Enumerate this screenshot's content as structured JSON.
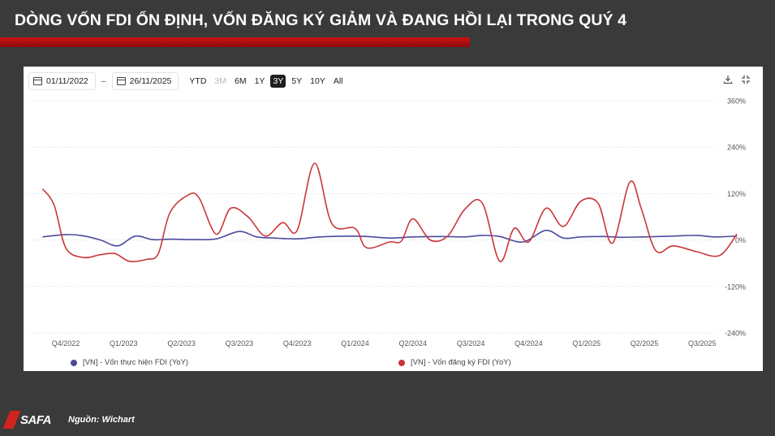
{
  "header": {
    "title": "DÒNG VỐN FDI ỔN ĐỊNH, VỐN ĐĂNG KÝ GIẢM VÀ ĐANG HỒI LẠI TRONG QUÝ 4"
  },
  "toolbar": {
    "start_date": "01/11/2022",
    "separator": "–",
    "end_date": "26/11/2025",
    "ranges": [
      {
        "label": "YTD",
        "state": "normal"
      },
      {
        "label": "3M",
        "state": "disabled"
      },
      {
        "label": "6M",
        "state": "normal"
      },
      {
        "label": "1Y",
        "state": "normal"
      },
      {
        "label": "3Y",
        "state": "active"
      },
      {
        "label": "5Y",
        "state": "normal"
      },
      {
        "label": "10Y",
        "state": "normal"
      },
      {
        "label": "All",
        "state": "normal"
      }
    ],
    "download_icon": "download-icon",
    "fullscreen_icon": "fullscreen-icon"
  },
  "chart_data": {
    "type": "line",
    "x_tick_labels": [
      "Q4/2022",
      "Q1/2023",
      "Q2/2023",
      "Q3/2023",
      "Q4/2023",
      "Q1/2024",
      "Q2/2024",
      "Q3/2024",
      "Q4/2024",
      "Q1/2025",
      "Q2/2025",
      "Q3/2025"
    ],
    "y_ticks": [
      360,
      240,
      120,
      0,
      -120,
      -240
    ],
    "y_tick_labels": [
      "360%",
      "240%",
      "120%",
      "0%",
      "-120%",
      "-240%"
    ],
    "ylim": [
      -240,
      360
    ],
    "xlim": [
      0,
      12
    ],
    "grid": true,
    "legend_position": "bottom",
    "series": [
      {
        "name": "[VN] - Vốn thực hiện FDI (YoY)",
        "color": "#4a4a9e",
        "points": [
          [
            -0.4,
            8
          ],
          [
            0.0,
            14
          ],
          [
            0.3,
            11
          ],
          [
            0.6,
            0
          ],
          [
            0.9,
            -15
          ],
          [
            1.2,
            10
          ],
          [
            1.5,
            1
          ],
          [
            1.8,
            2
          ],
          [
            2.2,
            1
          ],
          [
            2.6,
            3
          ],
          [
            3.0,
            22
          ],
          [
            3.3,
            8
          ],
          [
            3.6,
            5
          ],
          [
            4.0,
            3
          ],
          [
            4.4,
            8
          ],
          [
            4.9,
            10
          ],
          [
            5.2,
            9
          ],
          [
            5.6,
            5
          ],
          [
            6.0,
            8
          ],
          [
            6.5,
            9
          ],
          [
            6.9,
            8
          ],
          [
            7.2,
            12
          ],
          [
            7.5,
            9
          ],
          [
            7.9,
            -5
          ],
          [
            8.3,
            25
          ],
          [
            8.6,
            5
          ],
          [
            8.9,
            8
          ],
          [
            9.3,
            9
          ],
          [
            9.6,
            7
          ],
          [
            10.0,
            8
          ],
          [
            10.5,
            10
          ],
          [
            10.9,
            12
          ],
          [
            11.2,
            8
          ],
          [
            11.6,
            10
          ]
        ]
      },
      {
        "name": "[VN] - Vốn đăng ký FDI (YoY)",
        "color": "#c9363a",
        "points": [
          [
            -0.4,
            132
          ],
          [
            -0.2,
            90
          ],
          [
            0.0,
            -20
          ],
          [
            0.3,
            -45
          ],
          [
            0.6,
            -38
          ],
          [
            0.85,
            -35
          ],
          [
            1.1,
            -55
          ],
          [
            1.4,
            -50
          ],
          [
            1.6,
            -35
          ],
          [
            1.8,
            70
          ],
          [
            2.1,
            115
          ],
          [
            2.3,
            110
          ],
          [
            2.6,
            15
          ],
          [
            2.85,
            82
          ],
          [
            3.15,
            60
          ],
          [
            3.45,
            10
          ],
          [
            3.75,
            45
          ],
          [
            4.0,
            25
          ],
          [
            4.3,
            198
          ],
          [
            4.6,
            42
          ],
          [
            5.0,
            30
          ],
          [
            5.2,
            -20
          ],
          [
            5.6,
            -5
          ],
          [
            5.8,
            -3
          ],
          [
            6.0,
            55
          ],
          [
            6.3,
            0
          ],
          [
            6.6,
            10
          ],
          [
            6.9,
            80
          ],
          [
            7.2,
            95
          ],
          [
            7.5,
            -55
          ],
          [
            7.75,
            30
          ],
          [
            8.0,
            -5
          ],
          [
            8.3,
            82
          ],
          [
            8.6,
            35
          ],
          [
            8.9,
            100
          ],
          [
            9.2,
            95
          ],
          [
            9.45,
            -8
          ],
          [
            9.75,
            150
          ],
          [
            9.95,
            80
          ],
          [
            10.2,
            -28
          ],
          [
            10.5,
            -15
          ],
          [
            10.9,
            -30
          ],
          [
            11.3,
            -40
          ],
          [
            11.6,
            15
          ]
        ]
      }
    ]
  },
  "legend": [
    {
      "label": "[VN] - Vốn thực hiện FDI (YoY)",
      "color": "#4a4a9e"
    },
    {
      "label": "[VN] - Vốn đăng ký FDI (YoY)",
      "color": "#c9363a"
    }
  ],
  "footer": {
    "logo_text": "SAFA",
    "source": "Nguồn: Wichart"
  }
}
